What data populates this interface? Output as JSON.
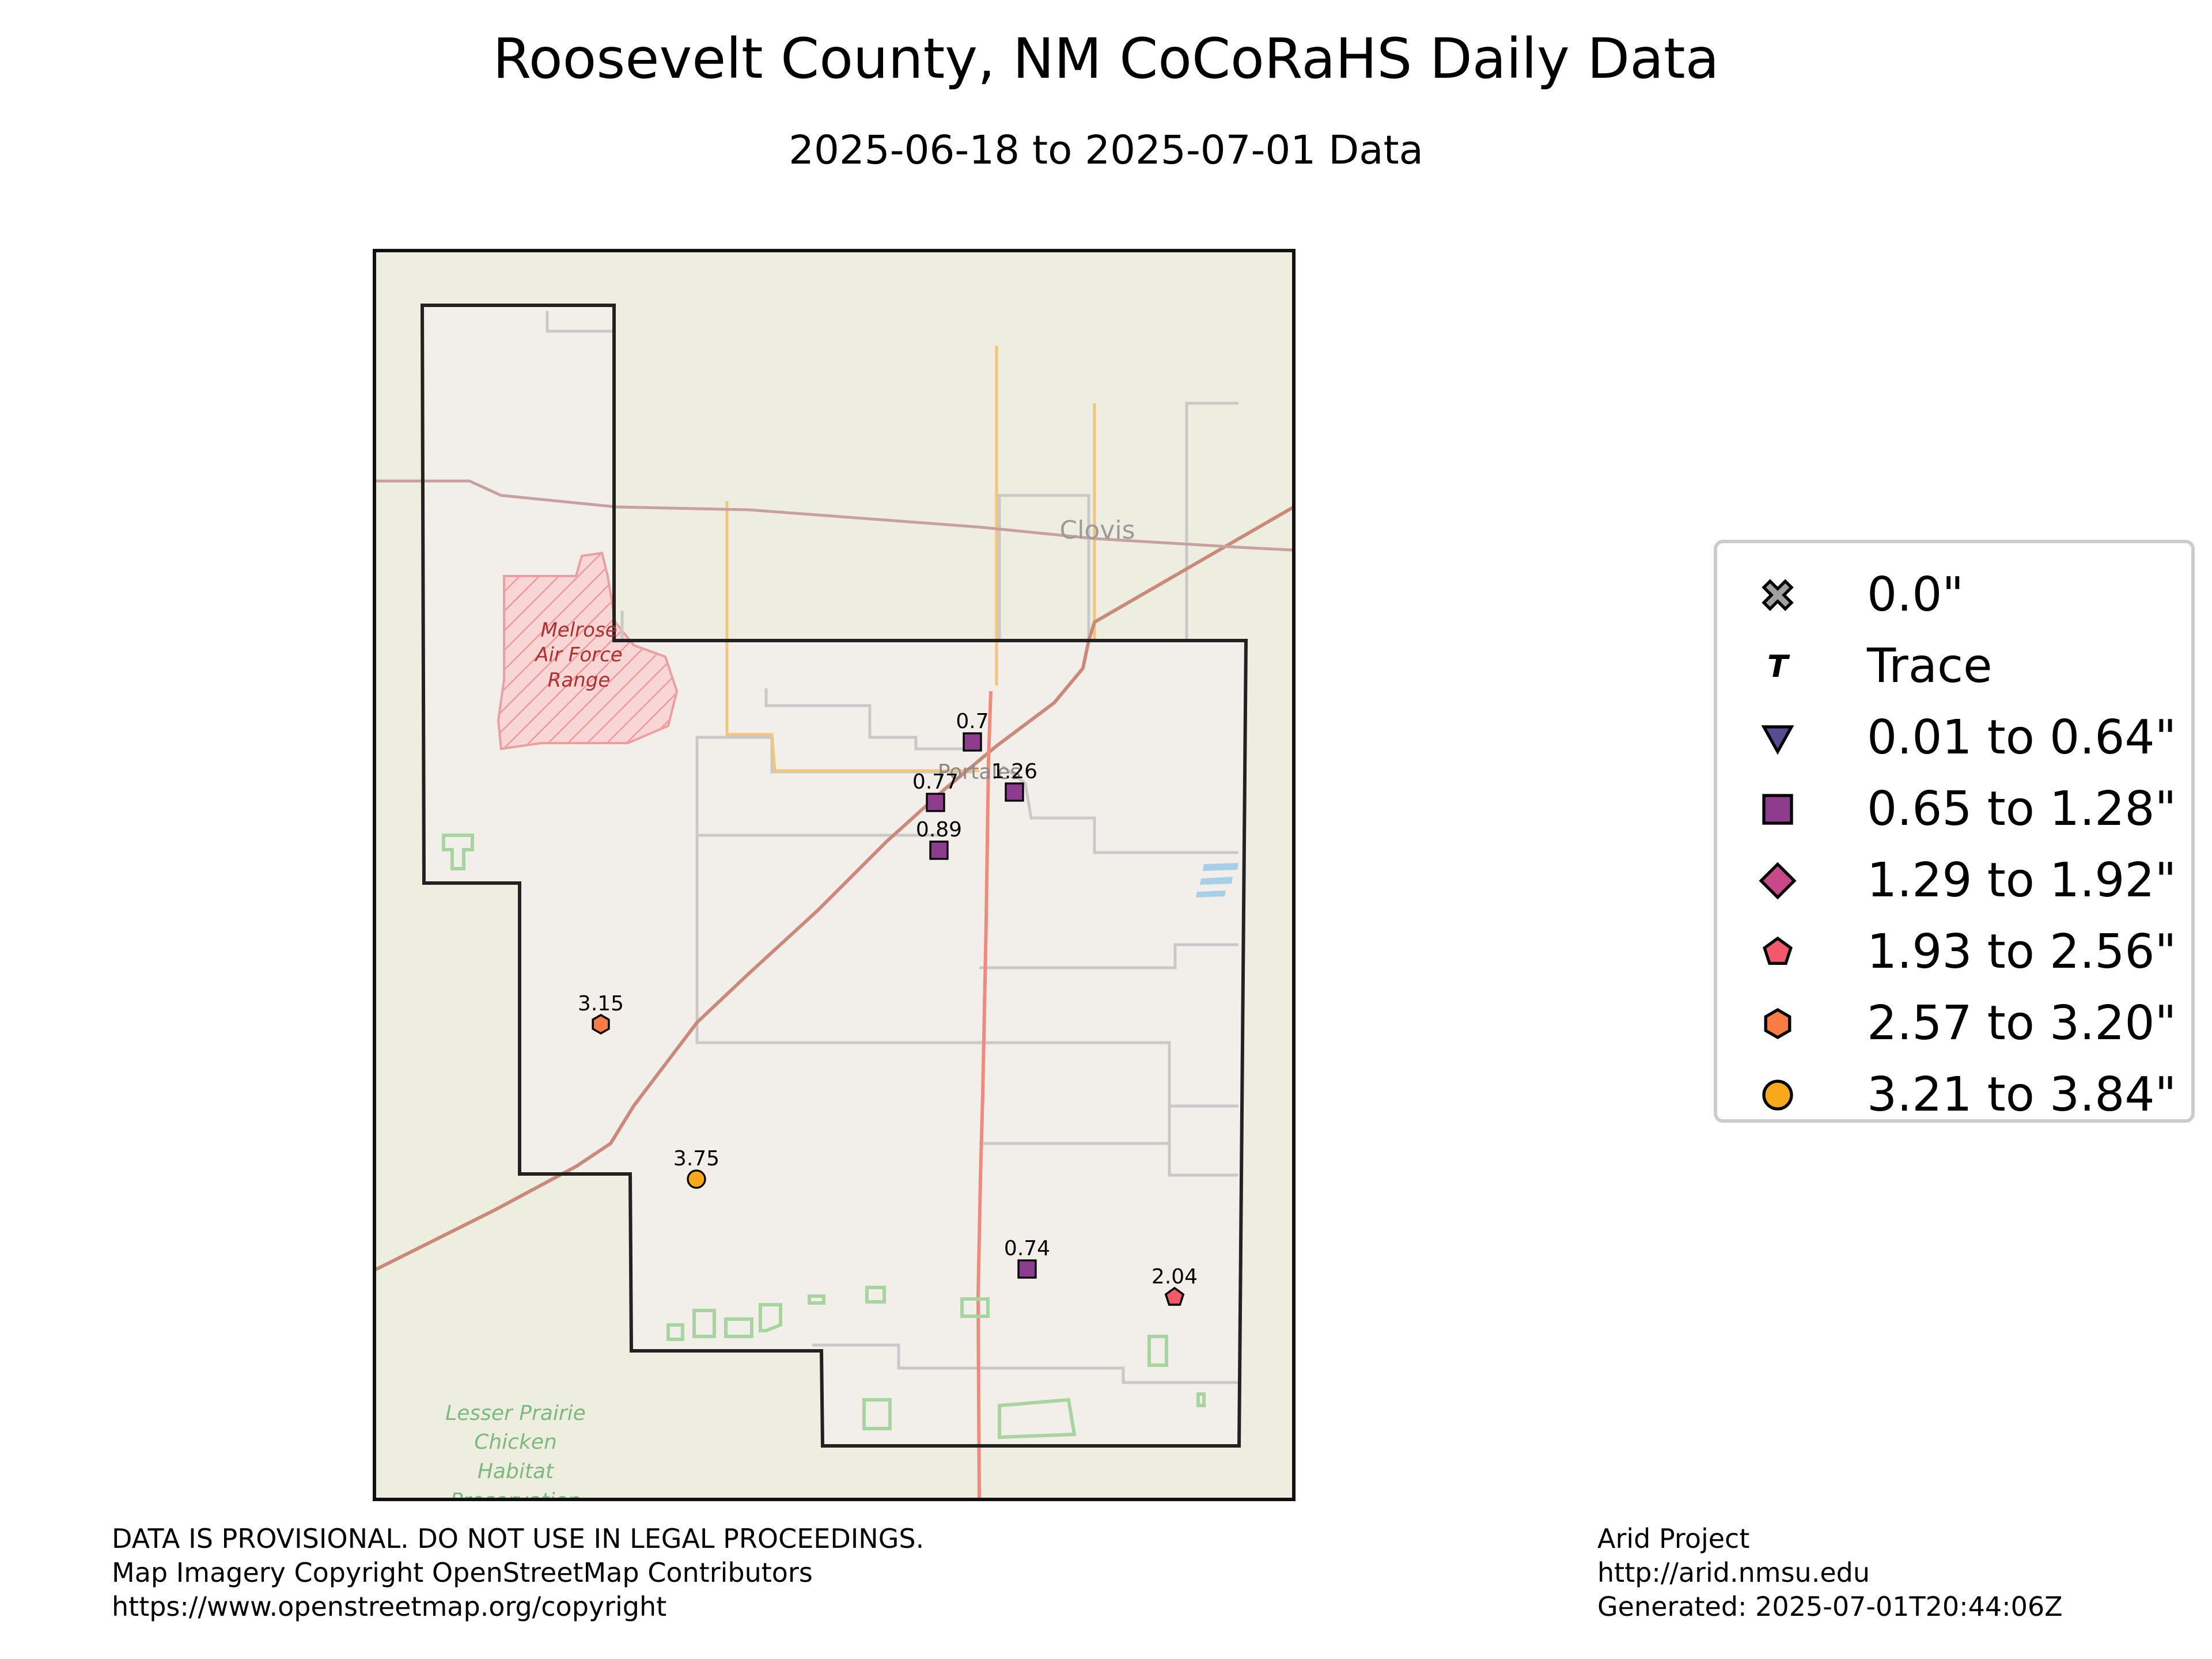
{
  "title": "Roosevelt County, NM CoCoRaHS Daily Data",
  "subtitle": "2025-06-18 to 2025-07-01 Data",
  "map_labels": {
    "clovis": "Clovis",
    "portales": "Portales",
    "melrose_line1": "Melrose",
    "melrose_line2": "Air Force",
    "melrose_line3": "Range",
    "lpc_line1": "Lesser Prairie",
    "lpc_line2": "Chicken",
    "lpc_line3": "Habitat",
    "lpc_line4": "Preservation"
  },
  "stations": [
    {
      "value": "0.7",
      "category": "0.65 to 1.28\""
    },
    {
      "value": "1.26",
      "category": "0.65 to 1.28\""
    },
    {
      "value": "0.77",
      "category": "0.65 to 1.28\""
    },
    {
      "value": "0.89",
      "category": "0.65 to 1.28\""
    },
    {
      "value": "3.15",
      "category": "2.57 to 3.20\""
    },
    {
      "value": "3.75",
      "category": "3.21 to 3.84\""
    },
    {
      "value": "0.74",
      "category": "0.65 to 1.28\""
    },
    {
      "value": "2.04",
      "category": "1.93 to 2.56\""
    }
  ],
  "legend": [
    {
      "label": "0.0\"",
      "marker": "x-icon",
      "color": "#a0a0a0"
    },
    {
      "label": "Trace",
      "marker": "t-icon",
      "color": "#000000"
    },
    {
      "label": "0.01 to 0.64\"",
      "marker": "triangle-down-icon",
      "color": "#5a4a8f"
    },
    {
      "label": "0.65 to 1.28\"",
      "marker": "square-icon",
      "color": "#8e3d8e"
    },
    {
      "label": "1.29 to 1.92\"",
      "marker": "diamond-icon",
      "color": "#c8488a"
    },
    {
      "label": "1.93 to 2.56\"",
      "marker": "pentagon-icon",
      "color": "#f25a6b"
    },
    {
      "label": "2.57 to 3.20\"",
      "marker": "hexagon-icon",
      "color": "#fa7c45"
    },
    {
      "label": "3.21 to 3.84\"",
      "marker": "circle-icon",
      "color": "#f7a81b"
    }
  ],
  "footer_left": [
    "DATA IS PROVISIONAL. DO NOT USE IN LEGAL PROCEEDINGS.",
    "Map Imagery Copyright OpenStreetMap Contributors",
    "https://www.openstreetmap.org/copyright"
  ],
  "footer_right": [
    "Arid Project",
    "http://arid.nmsu.edu",
    "Generated: 2025-07-01T20:44:06Z"
  ]
}
